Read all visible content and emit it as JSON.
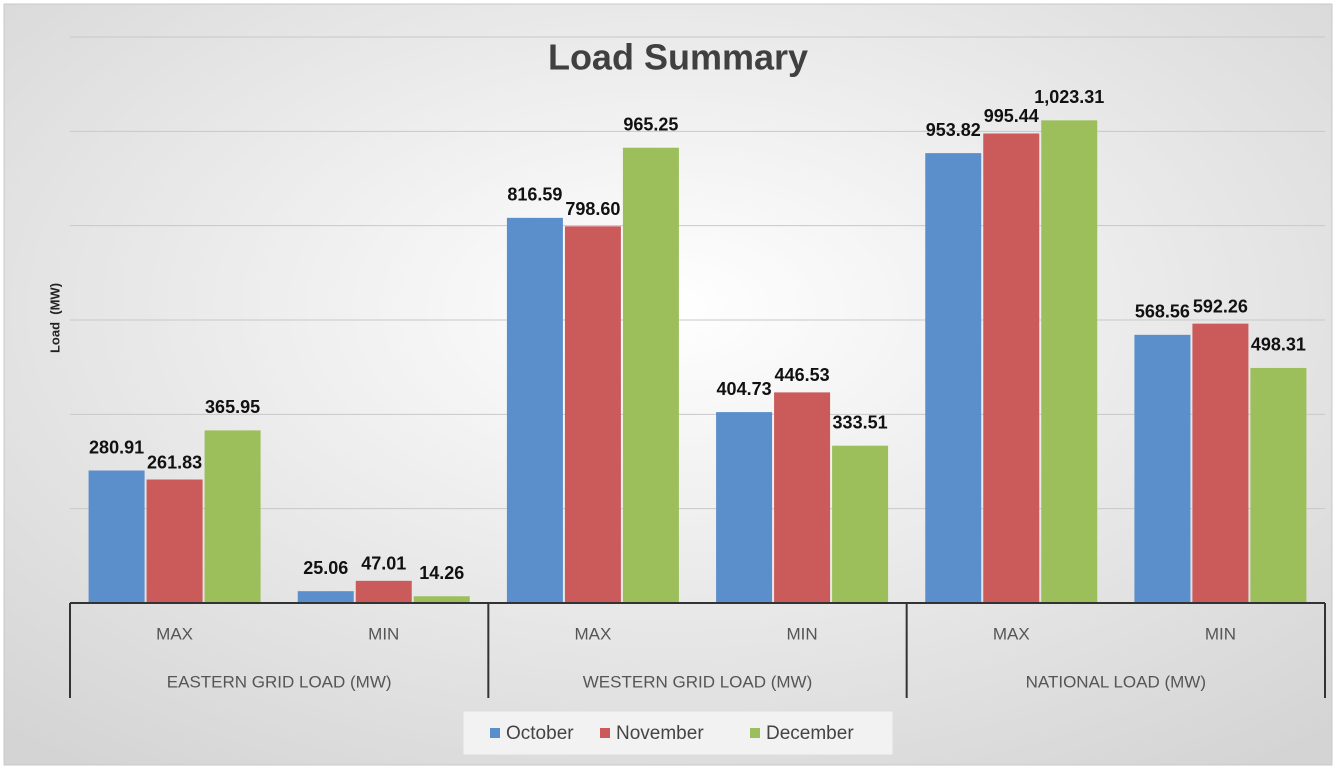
{
  "chart_data": {
    "type": "bar",
    "title": "Load Summary",
    "y_label": "Load  (MW)",
    "groups": [
      "EASTERN GRID LOAD (MW)",
      "WESTERN GRID LOAD (MW)",
      "NATIONAL LOAD (MW)"
    ],
    "categories": [
      "MAX",
      "MIN",
      "MAX",
      "MIN",
      "MAX",
      "MIN"
    ],
    "series": [
      {
        "name": "October",
        "color": "#5b8fcb",
        "values": [
          280.91,
          25.06,
          816.59,
          404.73,
          953.82,
          568.56
        ],
        "value_labels": [
          "280.91",
          "25.06",
          "816.59",
          "404.73",
          "953.82",
          "568.56"
        ]
      },
      {
        "name": "November",
        "color": "#cb5b5b",
        "values": [
          261.83,
          47.01,
          798.6,
          446.53,
          995.44,
          592.26
        ],
        "value_labels": [
          "261.83",
          "47.01",
          "798.60",
          "446.53",
          "995.44",
          "592.26"
        ]
      },
      {
        "name": "December",
        "color": "#9cbf5c",
        "values": [
          365.95,
          14.26,
          965.25,
          333.51,
          1023.31,
          498.31
        ],
        "value_labels": [
          "365.95",
          "14.26",
          "965.25",
          "333.51",
          "1,023.31",
          "498.31"
        ]
      }
    ],
    "ylim": [
      0,
      1200
    ],
    "yticks": [
      0,
      200,
      400,
      600,
      800,
      1000,
      1200
    ],
    "grid": true,
    "legend": "bottom"
  }
}
